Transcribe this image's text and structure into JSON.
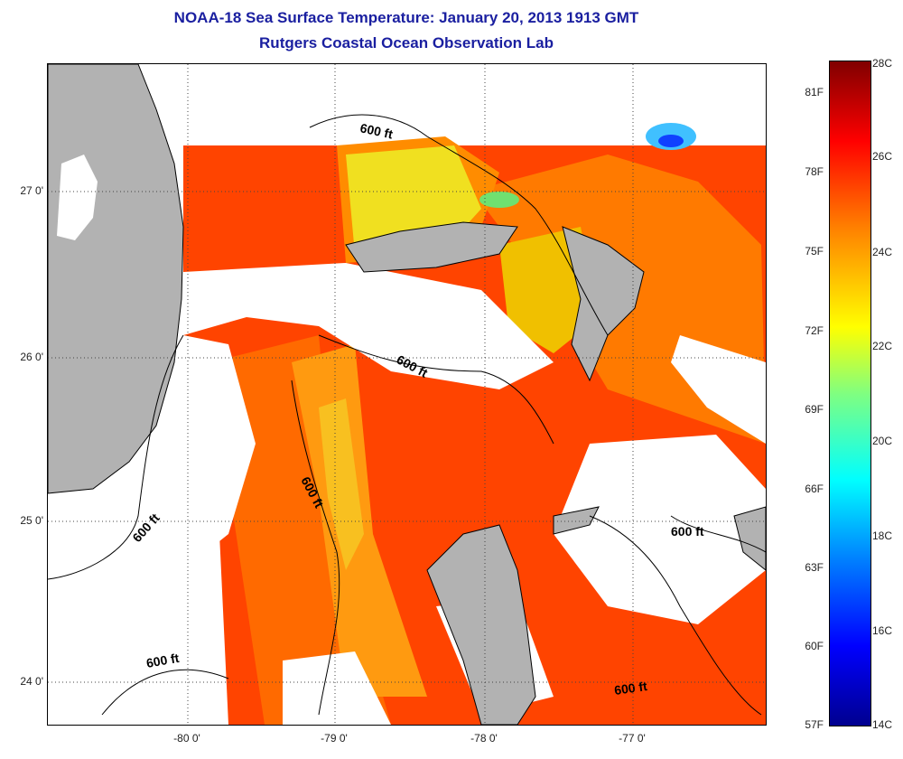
{
  "title": {
    "line1": "NOAA-18 Sea Surface Temperature:  January 20, 2013 1913 GMT",
    "line2": "Rutgers Coastal Ocean Observation Lab"
  },
  "map": {
    "lat_ticks": [
      "27 0'",
      "26 0'",
      "25 0'",
      "24 0'"
    ],
    "lon_ticks": [
      "-80 0'",
      "-79 0'",
      "-78 0'",
      "-77 0'"
    ],
    "contour_label": "600 ft",
    "colors": {
      "land": "#b2b2b2",
      "cloud": "#ffffff",
      "warm_red": "#ff3a00",
      "orange": "#ff8a00",
      "yellow": "#f4dc20",
      "cool_blue": "#1060ff"
    }
  },
  "colorbar": {
    "fahrenheit": [
      "81F",
      "78F",
      "75F",
      "72F",
      "69F",
      "66F",
      "63F",
      "60F",
      "57F"
    ],
    "celsius": [
      "28C",
      "26C",
      "24C",
      "22C",
      "20C",
      "18C",
      "16C",
      "14C"
    ]
  }
}
